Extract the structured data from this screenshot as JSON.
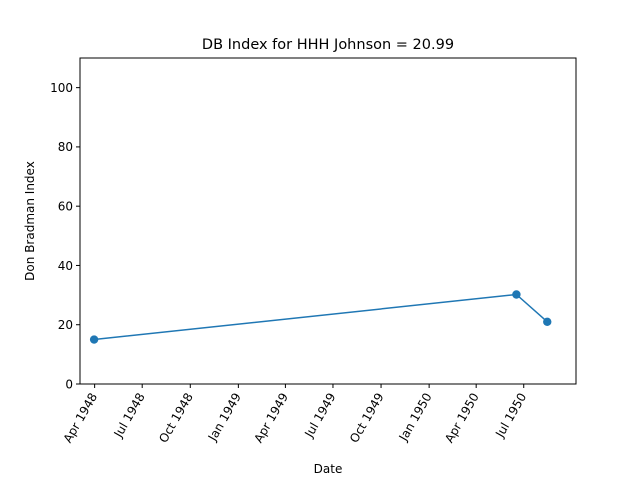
{
  "chart_data": {
    "type": "line",
    "title": "DB Index for HHH Johnson = 20.99",
    "xlabel": "Date",
    "ylabel": "Don Bradman Index",
    "x_range": [
      "1948-03-04",
      "1950-10-09"
    ],
    "ylim": [
      0,
      110
    ],
    "x_ticks": [
      {
        "date": "1948-04-01",
        "label": "Apr 1948"
      },
      {
        "date": "1948-07-01",
        "label": "Jul 1948"
      },
      {
        "date": "1948-10-01",
        "label": "Oct 1948"
      },
      {
        "date": "1949-01-01",
        "label": "Jan 1949"
      },
      {
        "date": "1949-04-01",
        "label": "Apr 1949"
      },
      {
        "date": "1949-07-01",
        "label": "Jul 1949"
      },
      {
        "date": "1949-10-01",
        "label": "Oct 1949"
      },
      {
        "date": "1950-01-01",
        "label": "Jan 1950"
      },
      {
        "date": "1950-04-01",
        "label": "Apr 1950"
      },
      {
        "date": "1950-07-01",
        "label": "Jul 1950"
      }
    ],
    "y_ticks": [
      0,
      20,
      40,
      60,
      80,
      100
    ],
    "grid": false,
    "series": [
      {
        "color": "#1f77b4",
        "marker": "circle",
        "points": [
          {
            "x": "1948-03-31",
            "y": 15.0
          },
          {
            "x": "1950-06-17",
            "y": 30.2
          },
          {
            "x": "1950-08-15",
            "y": 20.99
          }
        ]
      }
    ]
  }
}
